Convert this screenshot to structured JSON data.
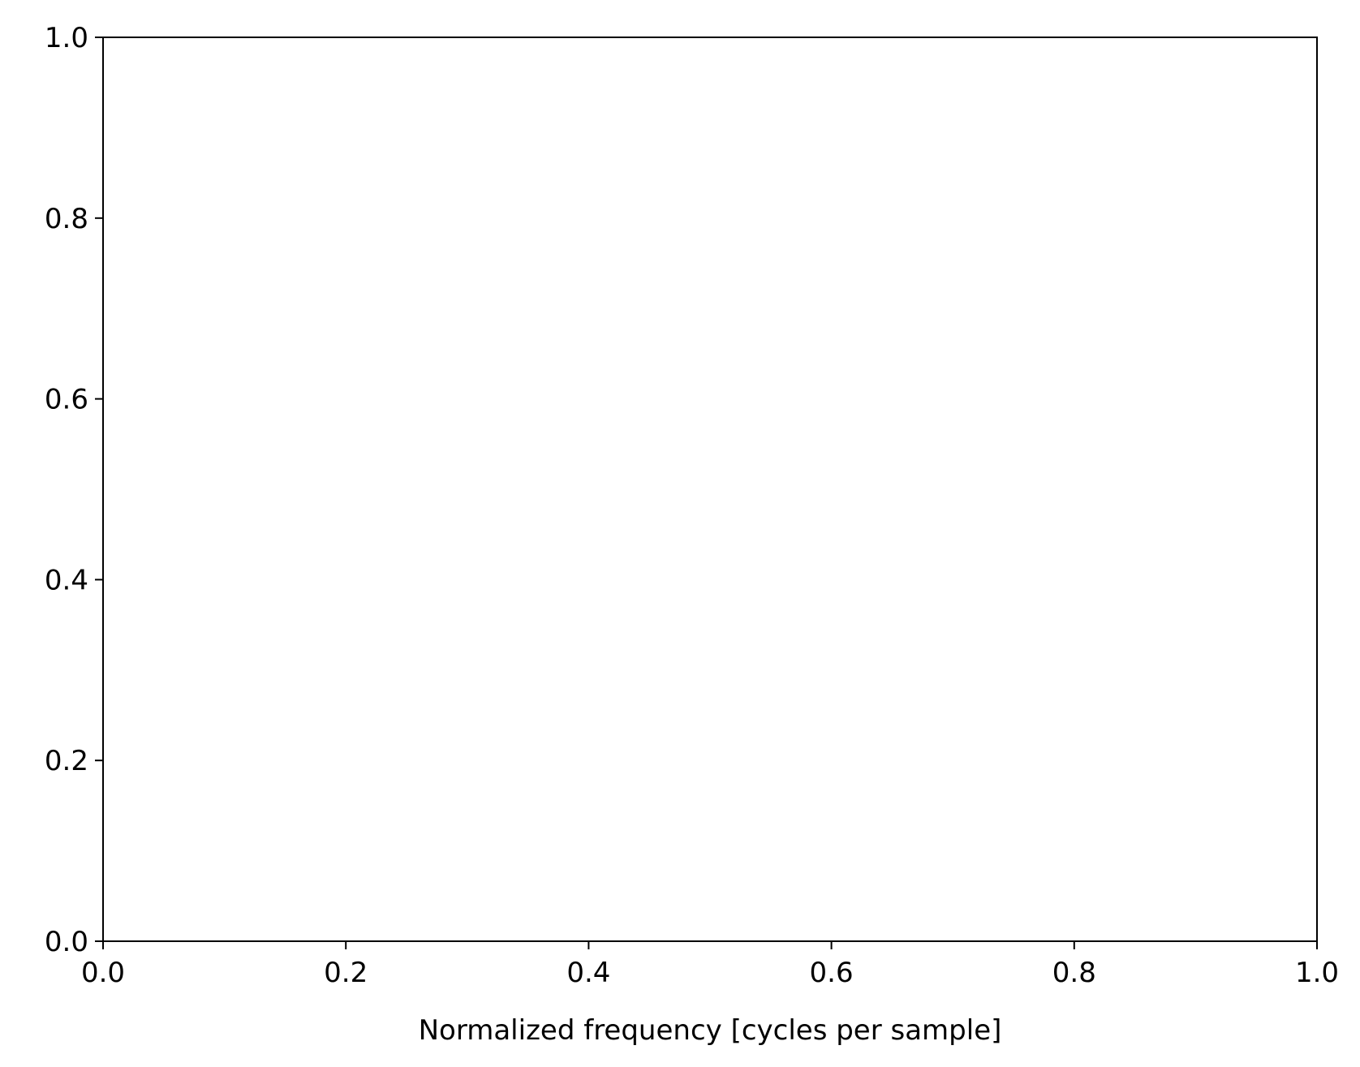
{
  "chart_data": {
    "type": "line",
    "title": "",
    "xlabel": "Normalized frequency [cycles per sample]",
    "ylabel": "",
    "xlim": [
      0.0,
      1.0
    ],
    "ylim": [
      0.0,
      1.0
    ],
    "xticks": [
      0.0,
      0.2,
      0.4,
      0.6,
      0.8,
      1.0
    ],
    "yticks": [
      0.0,
      0.2,
      0.4,
      0.6,
      0.8,
      1.0
    ],
    "xtick_labels": [
      "0.0",
      "0.2",
      "0.4",
      "0.6",
      "0.8",
      "1.0"
    ],
    "ytick_labels": [
      "0.0",
      "0.2",
      "0.4",
      "0.6",
      "0.8",
      "1.0"
    ],
    "series": [],
    "grid": false,
    "legend": "none"
  },
  "colors": {
    "axes": "#000000",
    "background": "#ffffff"
  }
}
